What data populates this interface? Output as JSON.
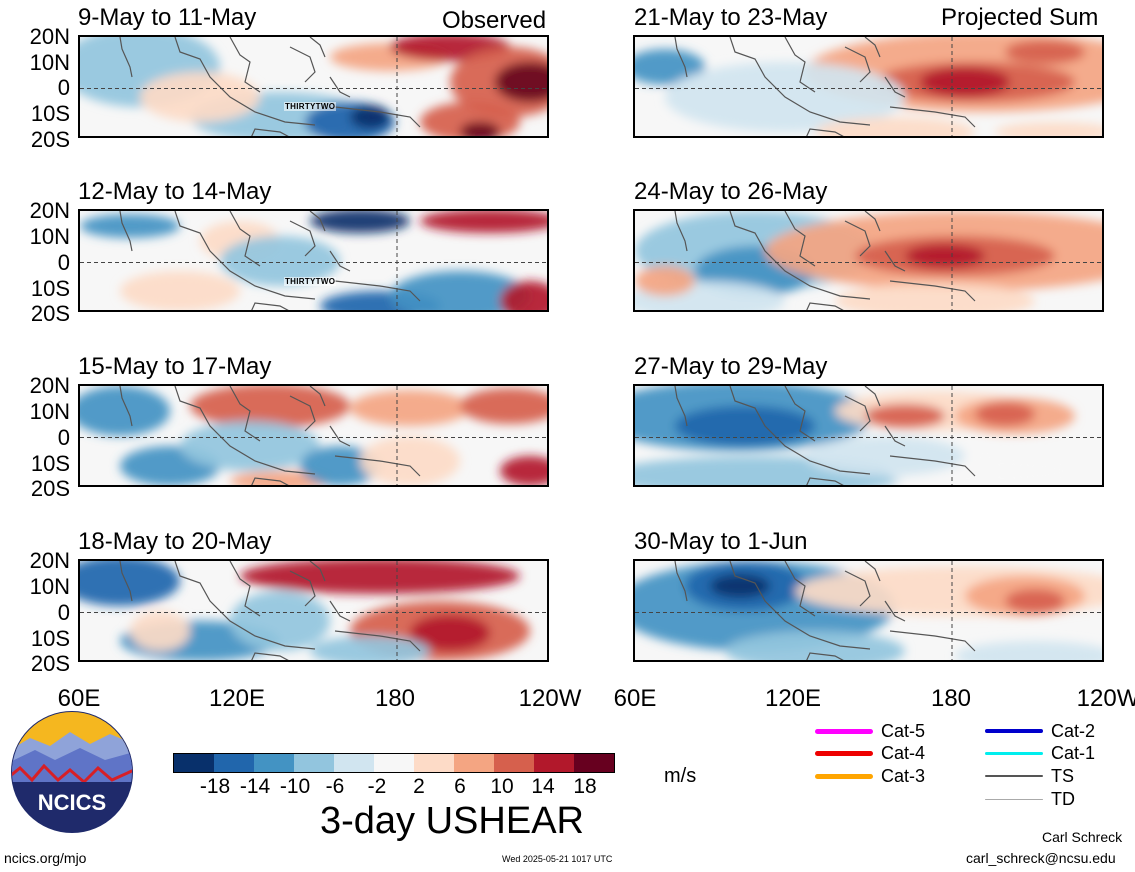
{
  "column_headers": {
    "left": "Observed",
    "right": "Projected Sum"
  },
  "panels_left": [
    {
      "title": "9-May to 11-May",
      "storm_label": "THIRTYTWO"
    },
    {
      "title": "12-May to 14-May",
      "storm_label": "THIRTYTWO"
    },
    {
      "title": "15-May to 17-May"
    },
    {
      "title": "18-May to 20-May"
    }
  ],
  "panels_right": [
    {
      "title": "21-May to 23-May"
    },
    {
      "title": "24-May to 26-May"
    },
    {
      "title": "27-May to 29-May"
    },
    {
      "title": "30-May to 1-Jun"
    }
  ],
  "lat_labels": [
    "20N",
    "10N",
    "0",
    "10S",
    "20S"
  ],
  "lon_labels": [
    "60E",
    "120E",
    "180",
    "120W"
  ],
  "colorbar": {
    "colors": [
      "#08306b",
      "#2166ac",
      "#4393c3",
      "#92c5de",
      "#d1e5f0",
      "#f7f7f7",
      "#fddbc7",
      "#f4a582",
      "#d6604d",
      "#b2182b",
      "#67001f"
    ],
    "ticks": [
      "-18",
      "-14",
      "-10",
      "-6",
      "-2",
      "2",
      "6",
      "10",
      "14",
      "18"
    ],
    "units": "m/s"
  },
  "title": "3-day USHEAR",
  "storm_legend": [
    {
      "label": "Cat-5",
      "color": "#ff00ff"
    },
    {
      "label": "Cat-4",
      "color": "#ee0000"
    },
    {
      "label": "Cat-3",
      "color": "#ffa500"
    },
    {
      "label": "Cat-2",
      "color": "#0000cc"
    },
    {
      "label": "Cat-1",
      "color": "#00eeee"
    },
    {
      "label": "TS",
      "color": "#555555"
    },
    {
      "label": "TD",
      "color": "#aaaaaa"
    }
  ],
  "logo_text": "NCICS",
  "footer": {
    "url": "ncics.org/mjo",
    "timestamp": "Wed 2025-05-21 1017 UTC",
    "author": "Carl Schreck",
    "email": "carl_schreck@ncsu.edu"
  }
}
